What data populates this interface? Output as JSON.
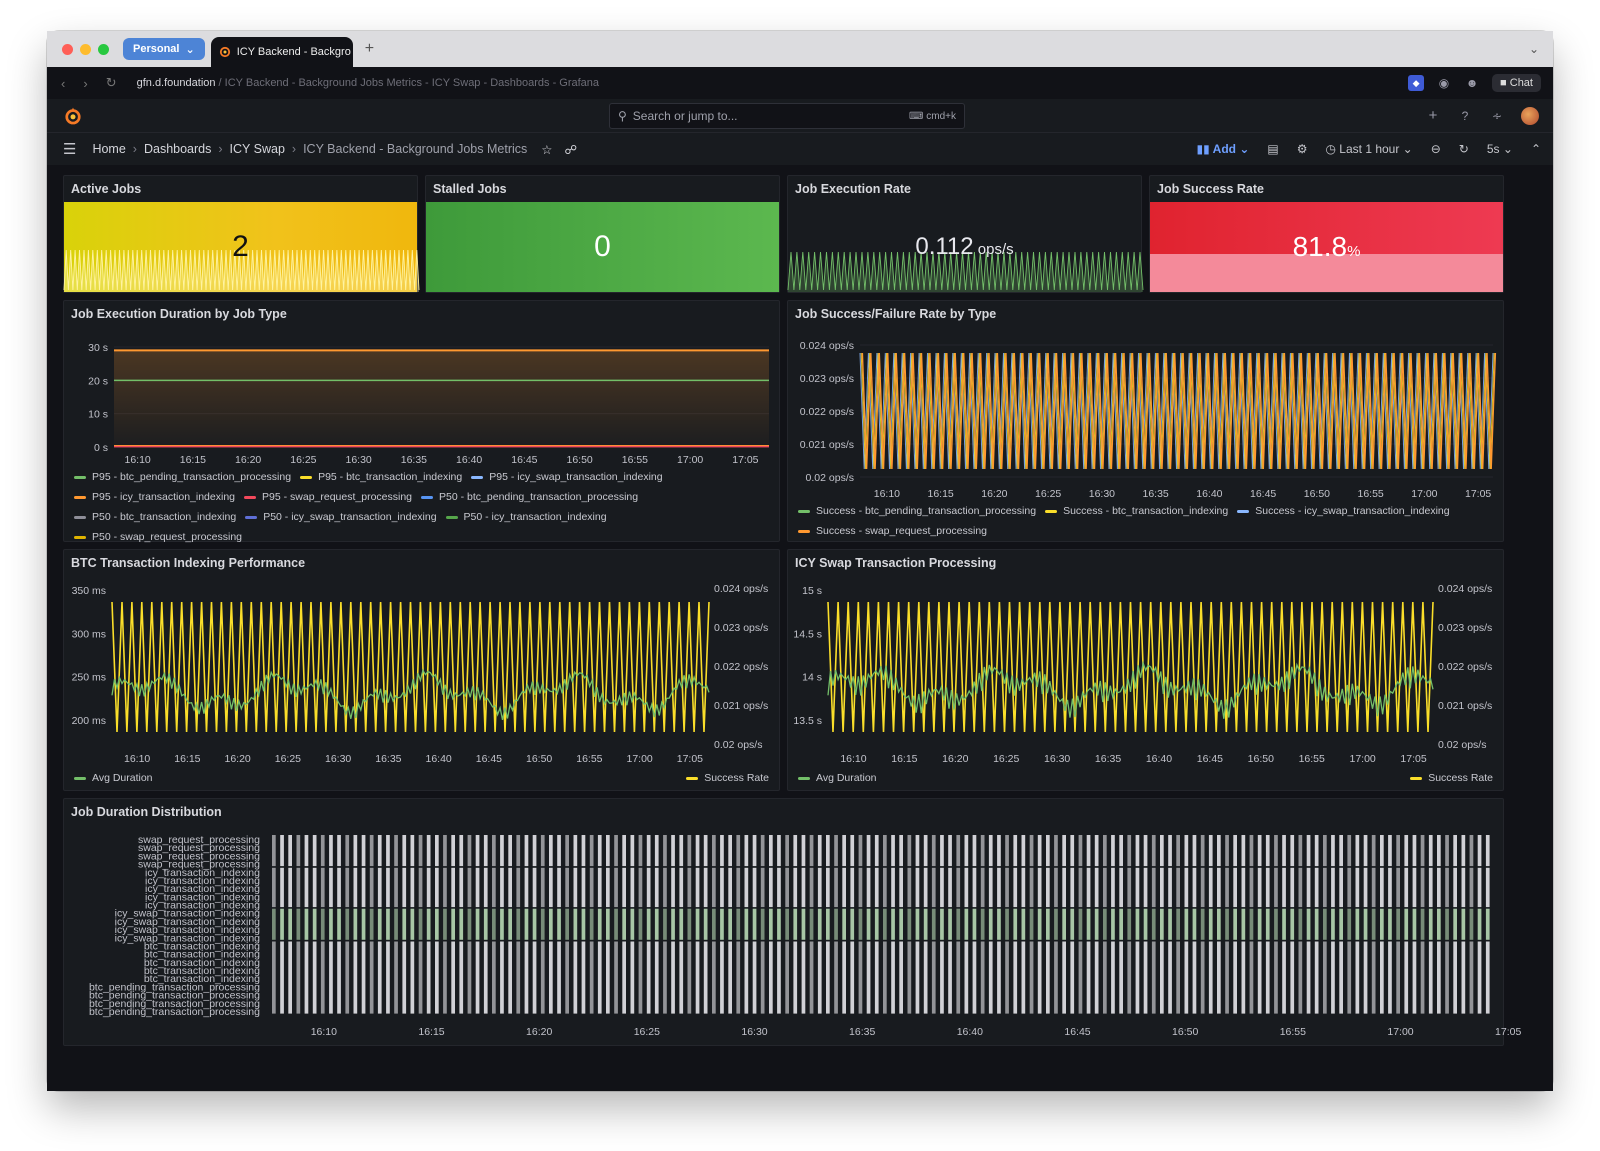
{
  "browser": {
    "profile": "Personal",
    "tab_title": "ICY Backend - Backgro",
    "url_host": "gfn.d.foundation",
    "url_rest": " / ICY Backend - Background Jobs Metrics - ICY Swap - Dashboards - Grafana",
    "chat_label": "Chat"
  },
  "topbar": {
    "search_placeholder": "Search or jump to...",
    "search_shortcut": "cmd+k"
  },
  "breadcrumb": {
    "items": [
      "Home",
      "Dashboards",
      "ICY Swap"
    ],
    "current": "ICY Backend - Background Jobs Metrics"
  },
  "toolbar": {
    "add_label": "Add",
    "time_range": "Last 1 hour",
    "refresh_interval": "5s"
  },
  "colors": {
    "yellow": "#fade2a",
    "green": "#73bf69",
    "orange": "#ff9830",
    "red": "#f2495c",
    "blue": "#8ab8ff"
  },
  "stats": {
    "active_jobs": {
      "title": "Active Jobs",
      "value": "2",
      "unit": ""
    },
    "stalled_jobs": {
      "title": "Stalled Jobs",
      "value": "0",
      "unit": ""
    },
    "exec_rate": {
      "title": "Job Execution Rate",
      "value": "0.112",
      "unit": " ops/s"
    },
    "success_rate": {
      "title": "Job Success Rate",
      "value": "81.8",
      "unit": "%"
    }
  },
  "time_ticks": [
    "16:10",
    "16:15",
    "16:20",
    "16:25",
    "16:30",
    "16:35",
    "16:40",
    "16:45",
    "16:50",
    "16:55",
    "17:00",
    "17:05"
  ],
  "panels": {
    "duration_by_type": {
      "title": "Job Execution Duration by Job Type",
      "y_ticks": [
        "30 s",
        "20 s",
        "10 s",
        "0 s"
      ],
      "legend": [
        {
          "label": "P95 - btc_pending_transaction_processing",
          "color": "#73bf69"
        },
        {
          "label": "P95 - btc_transaction_indexing",
          "color": "#fade2a"
        },
        {
          "label": "P95 - icy_swap_transaction_indexing",
          "color": "#8ab8ff"
        },
        {
          "label": "P95 - icy_transaction_indexing",
          "color": "#ff9830"
        },
        {
          "label": "P95 - swap_request_processing",
          "color": "#f2495c"
        },
        {
          "label": "P50 - btc_pending_transaction_processing",
          "color": "#5794f2"
        },
        {
          "label": "P50 - btc_transaction_indexing",
          "color": "#8e8e98"
        },
        {
          "label": "P50 - icy_swap_transaction_indexing",
          "color": "#5f6fd6"
        },
        {
          "label": "P50 - icy_transaction_indexing",
          "color": "#56a64b"
        },
        {
          "label": "P50 - swap_request_processing",
          "color": "#e0b400"
        }
      ]
    },
    "success_failure": {
      "title": "Job Success/Failure Rate by Type",
      "y_ticks": [
        "0.024 ops/s",
        "0.023 ops/s",
        "0.022 ops/s",
        "0.021 ops/s",
        "0.02 ops/s"
      ],
      "legend": [
        {
          "label": "Success - btc_pending_transaction_processing",
          "color": "#73bf69"
        },
        {
          "label": "Success - btc_transaction_indexing",
          "color": "#fade2a"
        },
        {
          "label": "Success - icy_swap_transaction_indexing",
          "color": "#8ab8ff"
        },
        {
          "label": "Success - swap_request_processing",
          "color": "#ff9830"
        }
      ]
    },
    "btc_indexing": {
      "title": "BTC Transaction Indexing Performance",
      "y_ticks": [
        "350 ms",
        "300 ms",
        "250 ms",
        "200 ms"
      ],
      "y2_ticks": [
        "0.024 ops/s",
        "0.023 ops/s",
        "0.022 ops/s",
        "0.021 ops/s",
        "0.02 ops/s"
      ],
      "legend_left": "Avg Duration",
      "legend_right": "Success Rate"
    },
    "icy_swap": {
      "title": "ICY Swap Transaction Processing",
      "y_ticks": [
        "15 s",
        "14.5 s",
        "14 s",
        "13.5 s"
      ],
      "y2_ticks": [
        "0.024 ops/s",
        "0.023 ops/s",
        "0.022 ops/s",
        "0.021 ops/s",
        "0.02 ops/s"
      ],
      "legend_left": "Avg Duration",
      "legend_right": "Success Rate"
    },
    "distribution": {
      "title": "Job Duration Distribution",
      "rows": [
        "swap_request_processing",
        "swap_request_processing",
        "swap_request_processing",
        "swap_request_processing",
        "icy_transaction_indexing",
        "icy_transaction_indexing",
        "icy_transaction_indexing",
        "icy_transaction_indexing",
        "icy_transaction_indexing",
        "icy_swap_transaction_indexing",
        "icy_swap_transaction_indexing",
        "icy_swap_transaction_indexing",
        "icy_swap_transaction_indexing",
        "btc_transaction_indexing",
        "btc_transaction_indexing",
        "btc_transaction_indexing",
        "btc_transaction_indexing",
        "btc_transaction_indexing",
        "btc_pending_transaction_processing",
        "btc_pending_transaction_processing",
        "btc_pending_transaction_processing",
        "btc_pending_transaction_processing"
      ]
    }
  }
}
